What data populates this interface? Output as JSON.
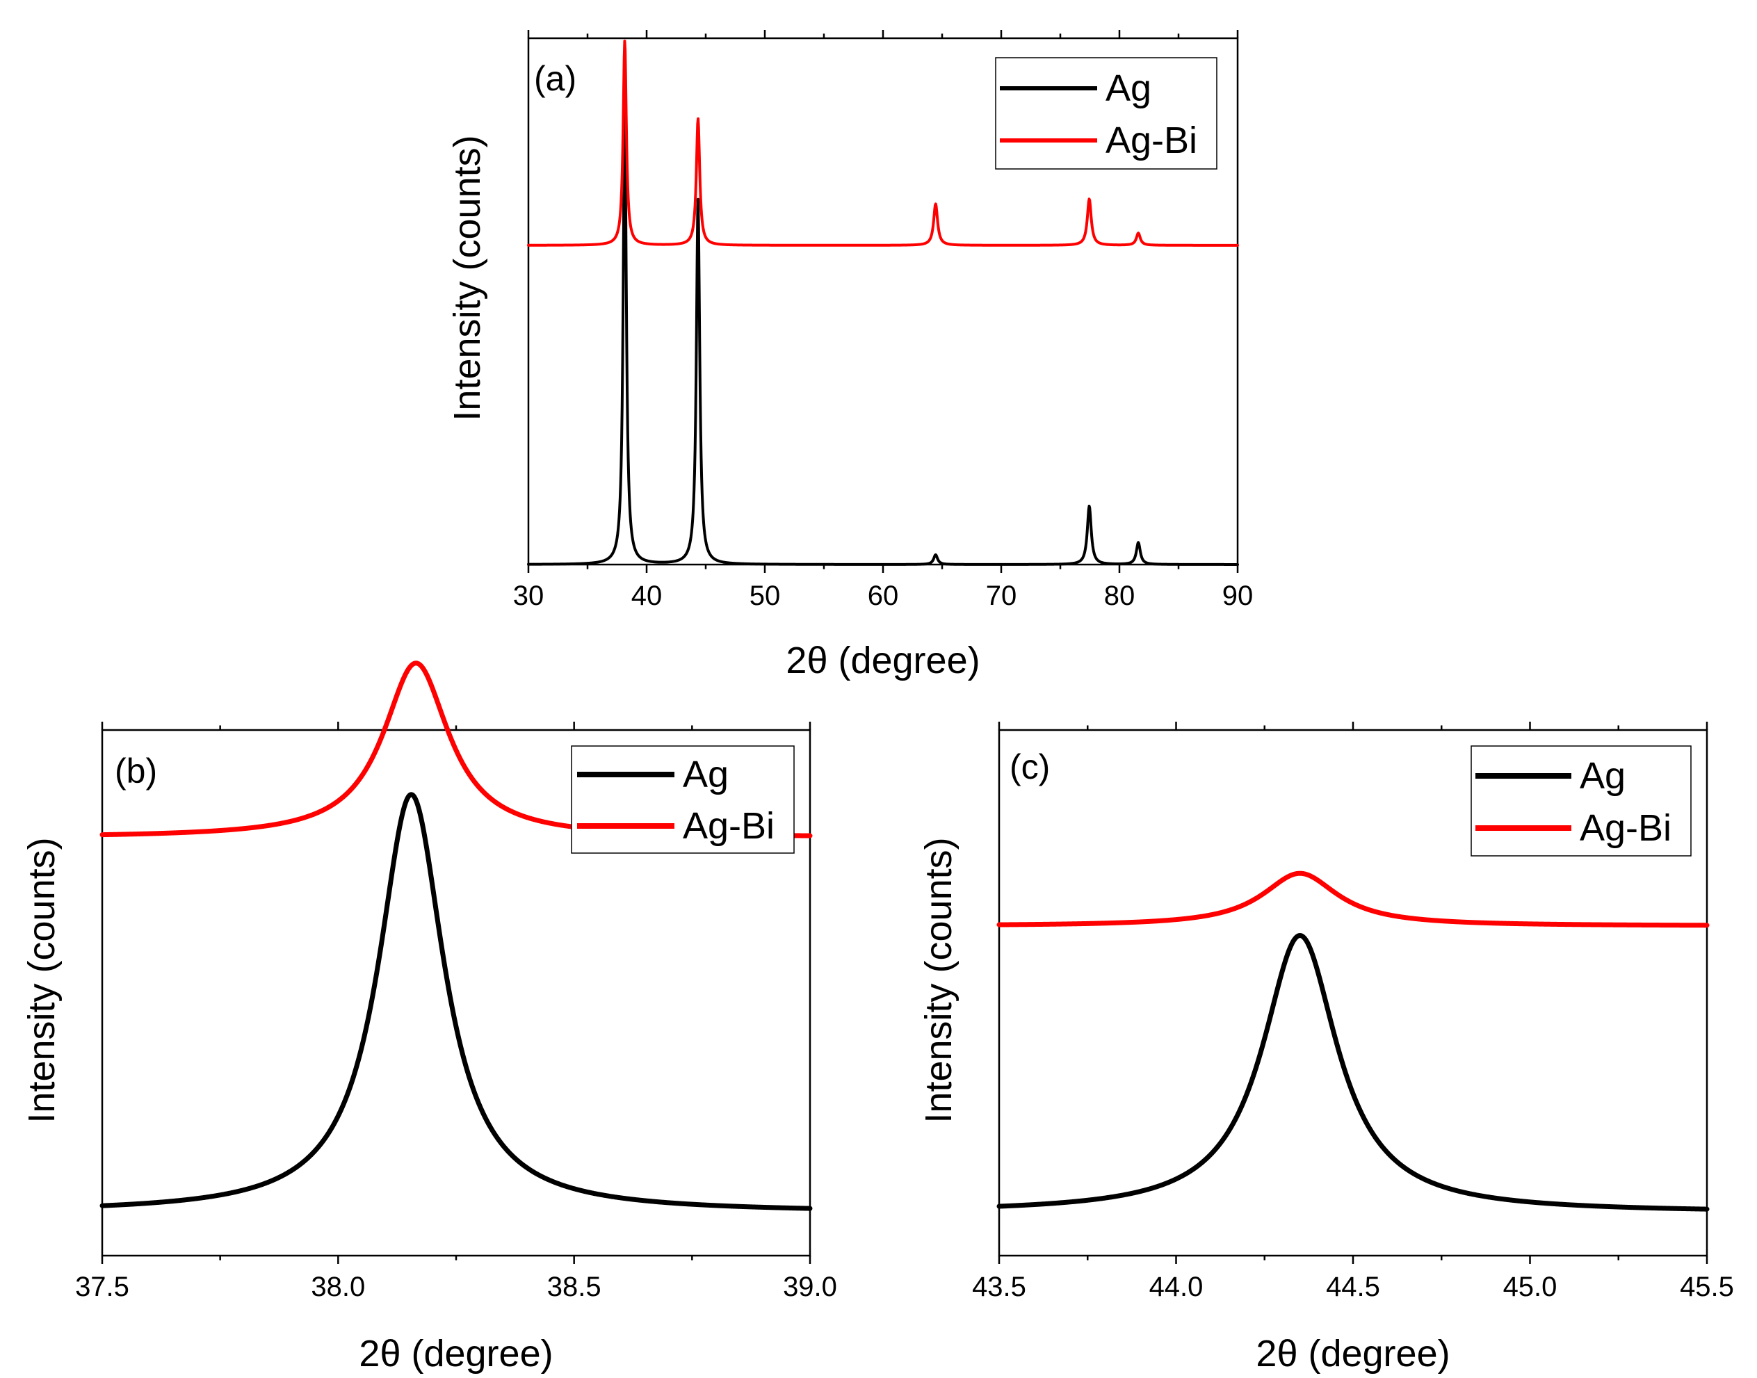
{
  "colors": {
    "ag": "#000000",
    "agbi": "#ff0000"
  },
  "chart_data": [
    {
      "id": "a",
      "type": "line",
      "panel_label": "(a)",
      "xlabel": "2θ (degree)",
      "ylabel": "Intensity (counts)",
      "xlim": [
        30,
        90
      ],
      "xticks": [
        "30",
        "40",
        "50",
        "60",
        "70",
        "80",
        "90"
      ],
      "ylim": [
        0,
        1.08
      ],
      "legend_position": "top-right",
      "series": [
        {
          "name": "Ag",
          "color": "#000000",
          "baseline": 0.0,
          "peaks": [
            {
              "center": 38.15,
              "height": 0.945,
              "width": 0.16
            },
            {
              "center": 44.35,
              "height": 0.75,
              "width": 0.17
            },
            {
              "center": 64.45,
              "height": 0.02,
              "width": 0.2
            },
            {
              "center": 77.45,
              "height": 0.12,
              "width": 0.2
            },
            {
              "center": 81.6,
              "height": 0.045,
              "width": 0.2
            }
          ]
        },
        {
          "name": "Ag-Bi",
          "color": "#ff0000",
          "baseline": 0.655,
          "peaks": [
            {
              "center": 38.15,
              "height": 0.42,
              "width": 0.16
            },
            {
              "center": 44.35,
              "height": 0.26,
              "width": 0.17
            },
            {
              "center": 64.45,
              "height": 0.085,
              "width": 0.2
            },
            {
              "center": 77.45,
              "height": 0.095,
              "width": 0.2
            },
            {
              "center": 81.6,
              "height": 0.025,
              "width": 0.2
            }
          ]
        }
      ]
    },
    {
      "id": "b",
      "type": "line",
      "panel_label": "(b)",
      "xlabel": "2θ (degree)",
      "ylabel": "Intensity (counts)",
      "xlim": [
        37.5,
        39.0
      ],
      "xticks": [
        "37.5",
        "38.0",
        "38.5",
        "39.0"
      ],
      "ylim": [
        0,
        1.1
      ],
      "legend_position": "top-right",
      "series": [
        {
          "name": "Ag",
          "color": "#000000",
          "baseline": 0.09,
          "peaks": [
            {
              "center": 38.155,
              "height": 0.875,
              "width": 0.085
            }
          ]
        },
        {
          "name": "Ag-Bi",
          "color": "#ff0000",
          "baseline": 0.875,
          "peaks": [
            {
              "center": 38.165,
              "height": 0.365,
              "width": 0.085
            }
          ]
        }
      ]
    },
    {
      "id": "c",
      "type": "line",
      "panel_label": "(c)",
      "xlabel": "2θ (degree)",
      "ylabel": "Intensity (counts)",
      "xlim": [
        43.5,
        45.5
      ],
      "xticks": [
        "43.5",
        "44.0",
        "44.5",
        "45.0",
        "45.5"
      ],
      "ylim": [
        0,
        1.1
      ],
      "legend_position": "top-right",
      "series": [
        {
          "name": "Ag",
          "color": "#000000",
          "baseline": 0.09,
          "peaks": [
            {
              "center": 44.35,
              "height": 0.58,
              "width": 0.13
            }
          ]
        },
        {
          "name": "Ag-Bi",
          "color": "#ff0000",
          "baseline": 0.69,
          "peaks": [
            {
              "center": 44.35,
              "height": 0.11,
              "width": 0.13
            }
          ]
        }
      ]
    }
  ]
}
